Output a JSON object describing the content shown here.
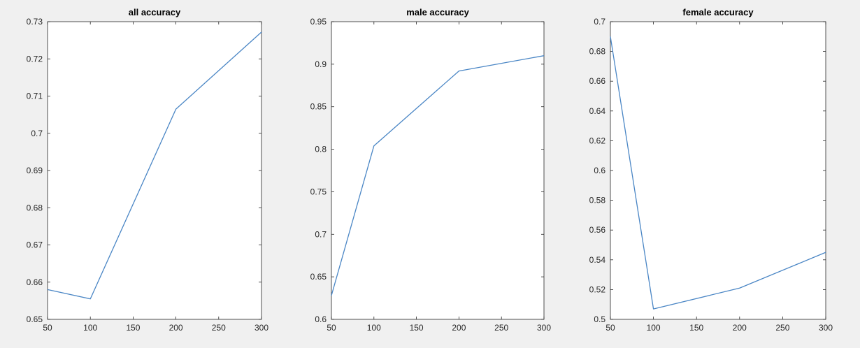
{
  "chart_data": [
    {
      "type": "line",
      "title": "all accuracy",
      "xlabel": "",
      "ylabel": "",
      "x": [
        50,
        100,
        200,
        300
      ],
      "series": [
        {
          "values": [
            0.658,
            0.6555,
            0.7065,
            0.7272
          ]
        }
      ],
      "xlim": [
        50,
        300
      ],
      "ylim": [
        0.65,
        0.73
      ],
      "xticks": [
        50,
        100,
        150,
        200,
        250,
        300
      ],
      "yticks": [
        0.65,
        0.66,
        0.67,
        0.68,
        0.69,
        0.7,
        0.71,
        0.72,
        0.73
      ],
      "grid": false,
      "line_color": "#4a86c5"
    },
    {
      "type": "line",
      "title": "male accuracy",
      "xlabel": "",
      "ylabel": "",
      "x": [
        50,
        100,
        200,
        300
      ],
      "series": [
        {
          "values": [
            0.628,
            0.804,
            0.892,
            0.91
          ]
        }
      ],
      "xlim": [
        50,
        300
      ],
      "ylim": [
        0.6,
        0.95
      ],
      "xticks": [
        50,
        100,
        150,
        200,
        250,
        300
      ],
      "yticks": [
        0.6,
        0.65,
        0.7,
        0.75,
        0.8,
        0.85,
        0.9,
        0.95
      ],
      "grid": false,
      "line_color": "#4a86c5"
    },
    {
      "type": "line",
      "title": "female accuracy",
      "xlabel": "",
      "ylabel": "",
      "x": [
        50,
        100,
        200,
        300
      ],
      "series": [
        {
          "values": [
            0.69,
            0.507,
            0.521,
            0.545
          ]
        }
      ],
      "xlim": [
        50,
        300
      ],
      "ylim": [
        0.5,
        0.7
      ],
      "xticks": [
        50,
        100,
        150,
        200,
        250,
        300
      ],
      "yticks": [
        0.5,
        0.52,
        0.54,
        0.56,
        0.58,
        0.6,
        0.62,
        0.64,
        0.66,
        0.68,
        0.7
      ],
      "grid": false,
      "line_color": "#4a86c5"
    }
  ],
  "colors": {
    "figure_background": "#f0f0f0",
    "axes_background": "#ffffff",
    "axis_color": "#262626"
  }
}
